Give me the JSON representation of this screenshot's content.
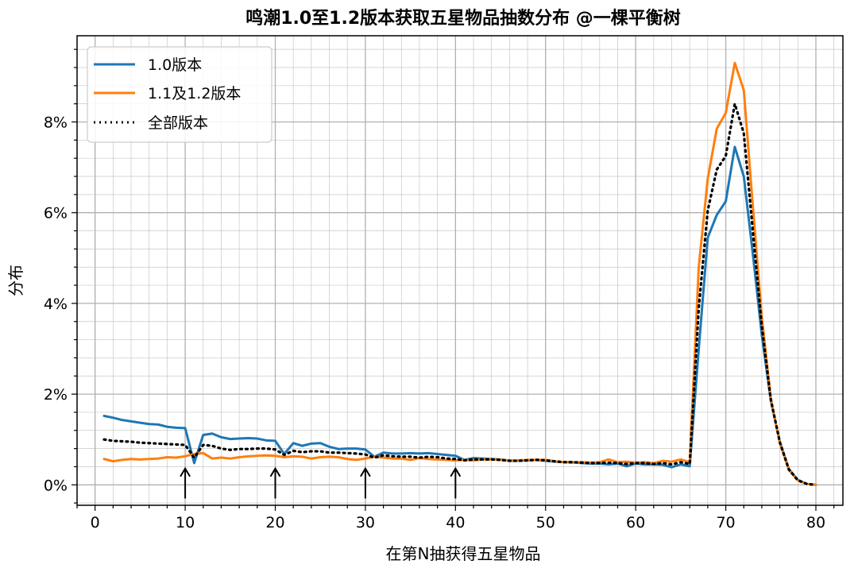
{
  "chart_data": {
    "type": "line",
    "title": "鸣潮1.0至1.2版本获取五星物品抽数分布 @一棵平衡树",
    "xlabel": "在第N抽获得五星物品",
    "ylabel": "分布",
    "xlim": [
      -2,
      83
    ],
    "ylim": [
      -0.45,
      9.9
    ],
    "xticks": [
      0,
      10,
      20,
      30,
      40,
      50,
      60,
      70,
      80
    ],
    "yticks": [
      0,
      2,
      4,
      6,
      8
    ],
    "ytick_labels": [
      "0%",
      "2%",
      "4%",
      "6%",
      "8%"
    ],
    "grid": "on (major and minor)",
    "legend_position": "upper-left",
    "x": [
      1,
      2,
      3,
      4,
      5,
      6,
      7,
      8,
      9,
      10,
      11,
      12,
      13,
      14,
      15,
      16,
      17,
      18,
      19,
      20,
      21,
      22,
      23,
      24,
      25,
      26,
      27,
      28,
      29,
      30,
      31,
      32,
      33,
      34,
      35,
      36,
      37,
      38,
      39,
      40,
      41,
      42,
      43,
      44,
      45,
      46,
      47,
      48,
      49,
      50,
      51,
      52,
      53,
      54,
      55,
      56,
      57,
      58,
      59,
      60,
      61,
      62,
      63,
      64,
      65,
      66,
      67,
      68,
      69,
      70,
      71,
      72,
      73,
      74,
      75,
      76,
      77,
      78,
      79,
      80
    ],
    "series": [
      {
        "name": "1.0版本",
        "color": "#1f77b4",
        "style": "solid",
        "values": [
          1.52,
          1.48,
          1.43,
          1.4,
          1.37,
          1.34,
          1.33,
          1.28,
          1.26,
          1.25,
          0.48,
          1.1,
          1.13,
          1.05,
          1.01,
          1.02,
          1.03,
          1.02,
          0.98,
          0.97,
          0.68,
          0.92,
          0.86,
          0.91,
          0.92,
          0.84,
          0.79,
          0.8,
          0.8,
          0.78,
          0.62,
          0.71,
          0.69,
          0.69,
          0.7,
          0.69,
          0.7,
          0.68,
          0.66,
          0.64,
          0.55,
          0.59,
          0.58,
          0.57,
          0.56,
          0.53,
          0.53,
          0.54,
          0.55,
          0.53,
          0.51,
          0.5,
          0.5,
          0.48,
          0.47,
          0.47,
          0.45,
          0.47,
          0.41,
          0.47,
          0.45,
          0.45,
          0.44,
          0.39,
          0.45,
          0.41,
          3.0,
          5.45,
          5.95,
          6.25,
          7.45,
          6.8,
          5.1,
          3.3,
          1.85,
          0.95,
          0.35,
          0.11,
          0.02,
          0.0
        ]
      },
      {
        "name": "1.1及1.2版本",
        "color": "#ff7f0e",
        "style": "solid",
        "values": [
          0.57,
          0.52,
          0.55,
          0.57,
          0.56,
          0.57,
          0.58,
          0.61,
          0.6,
          0.63,
          0.68,
          0.7,
          0.58,
          0.6,
          0.58,
          0.61,
          0.63,
          0.64,
          0.65,
          0.64,
          0.61,
          0.63,
          0.62,
          0.58,
          0.61,
          0.62,
          0.61,
          0.57,
          0.55,
          0.58,
          0.62,
          0.6,
          0.58,
          0.58,
          0.55,
          0.59,
          0.57,
          0.56,
          0.55,
          0.54,
          0.55,
          0.54,
          0.56,
          0.56,
          0.55,
          0.54,
          0.54,
          0.55,
          0.55,
          0.55,
          0.52,
          0.5,
          0.49,
          0.5,
          0.49,
          0.5,
          0.56,
          0.5,
          0.51,
          0.49,
          0.5,
          0.48,
          0.53,
          0.51,
          0.56,
          0.5,
          4.8,
          6.75,
          7.85,
          8.2,
          9.3,
          8.7,
          6.15,
          3.7,
          1.9,
          0.92,
          0.33,
          0.1,
          0.02,
          0.0
        ]
      },
      {
        "name": "全部版本",
        "color": "#000000",
        "style": "dotted",
        "values": [
          1.0,
          0.97,
          0.96,
          0.95,
          0.93,
          0.92,
          0.91,
          0.9,
          0.89,
          0.88,
          0.6,
          0.88,
          0.86,
          0.8,
          0.77,
          0.79,
          0.79,
          0.8,
          0.8,
          0.78,
          0.66,
          0.75,
          0.72,
          0.74,
          0.74,
          0.71,
          0.71,
          0.7,
          0.69,
          0.67,
          0.6,
          0.65,
          0.63,
          0.62,
          0.62,
          0.6,
          0.62,
          0.61,
          0.58,
          0.57,
          0.54,
          0.56,
          0.56,
          0.56,
          0.55,
          0.53,
          0.53,
          0.54,
          0.55,
          0.54,
          0.52,
          0.5,
          0.5,
          0.49,
          0.48,
          0.48,
          0.49,
          0.48,
          0.46,
          0.48,
          0.48,
          0.46,
          0.48,
          0.45,
          0.5,
          0.46,
          3.9,
          6.05,
          6.95,
          7.25,
          8.4,
          7.75,
          5.6,
          3.5,
          1.88,
          0.94,
          0.34,
          0.1,
          0.02,
          0.0
        ]
      }
    ],
    "annotations": [
      {
        "type": "arrow",
        "x": 10
      },
      {
        "type": "arrow",
        "x": 20
      },
      {
        "type": "arrow",
        "x": 30
      },
      {
        "type": "arrow",
        "x": 40
      }
    ]
  }
}
